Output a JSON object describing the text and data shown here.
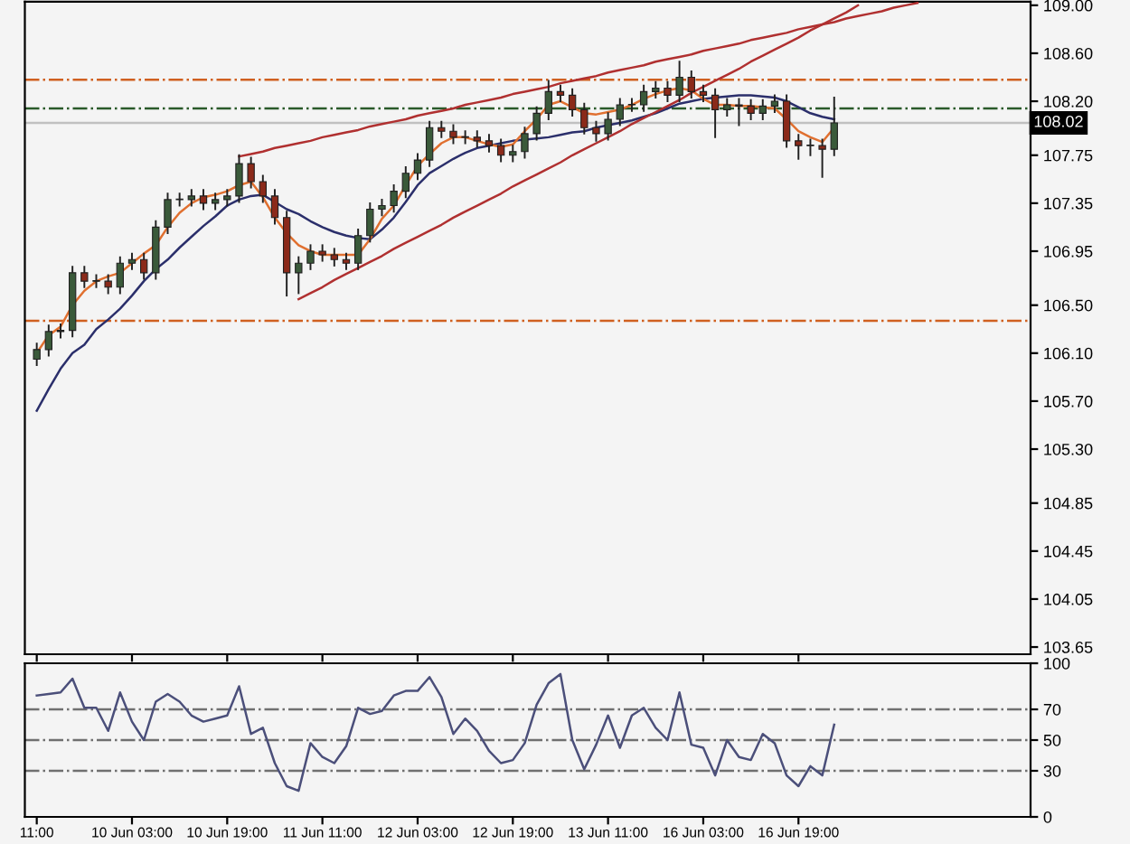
{
  "chart_data": [
    {
      "type": "candlestick",
      "ohlc": [
        [
          106.05,
          106.18,
          106.0,
          106.13
        ],
        [
          106.13,
          106.33,
          106.08,
          106.28
        ],
        [
          106.28,
          106.34,
          106.23,
          106.29
        ],
        [
          106.29,
          106.82,
          106.24,
          106.77
        ],
        [
          106.77,
          106.82,
          106.65,
          106.7
        ],
        [
          106.7,
          106.75,
          106.65,
          106.7
        ],
        [
          106.7,
          106.75,
          106.6,
          106.65
        ],
        [
          106.65,
          106.9,
          106.6,
          106.85
        ],
        [
          106.85,
          106.93,
          106.8,
          106.88
        ],
        [
          106.88,
          106.93,
          106.72,
          106.77
        ],
        [
          106.77,
          107.2,
          106.72,
          107.15
        ],
        [
          107.15,
          107.43,
          107.1,
          107.38
        ],
        [
          107.38,
          107.43,
          107.33,
          107.38
        ],
        [
          107.38,
          107.46,
          107.33,
          107.41
        ],
        [
          107.41,
          107.46,
          107.3,
          107.35
        ],
        [
          107.35,
          107.43,
          107.3,
          107.38
        ],
        [
          107.38,
          107.46,
          107.33,
          107.41
        ],
        [
          107.41,
          107.75,
          107.36,
          107.68
        ],
        [
          107.68,
          107.73,
          107.48,
          107.53
        ],
        [
          107.53,
          107.58,
          107.36,
          107.41
        ],
        [
          107.41,
          107.46,
          107.18,
          107.23
        ],
        [
          107.23,
          107.28,
          106.58,
          106.77
        ],
        [
          106.77,
          106.9,
          106.6,
          106.85
        ],
        [
          106.85,
          107.0,
          106.8,
          106.95
        ],
        [
          106.95,
          107.0,
          106.87,
          106.92
        ],
        [
          106.92,
          106.97,
          106.83,
          106.88
        ],
        [
          106.88,
          106.93,
          106.8,
          106.85
        ],
        [
          106.85,
          107.13,
          106.8,
          107.08
        ],
        [
          107.08,
          107.35,
          107.03,
          107.3
        ],
        [
          107.3,
          107.38,
          107.25,
          107.33
        ],
        [
          107.33,
          107.5,
          107.28,
          107.45
        ],
        [
          107.45,
          107.65,
          107.4,
          107.6
        ],
        [
          107.6,
          107.76,
          107.55,
          107.71
        ],
        [
          107.71,
          108.03,
          107.66,
          107.98
        ],
        [
          107.98,
          108.03,
          107.9,
          107.95
        ],
        [
          107.95,
          108.0,
          107.85,
          107.9
        ],
        [
          107.9,
          107.95,
          107.85,
          107.9
        ],
        [
          107.9,
          107.95,
          107.82,
          107.87
        ],
        [
          107.87,
          107.92,
          107.78,
          107.83
        ],
        [
          107.83,
          107.88,
          107.7,
          107.75
        ],
        [
          107.75,
          107.83,
          107.7,
          107.78
        ],
        [
          107.78,
          107.98,
          107.73,
          107.93
        ],
        [
          107.93,
          108.15,
          107.88,
          108.1
        ],
        [
          108.1,
          108.37,
          108.05,
          108.28
        ],
        [
          108.28,
          108.33,
          108.2,
          108.25
        ],
        [
          108.25,
          108.3,
          108.08,
          108.13
        ],
        [
          108.13,
          108.18,
          107.93,
          107.98
        ],
        [
          107.98,
          108.03,
          107.87,
          107.93
        ],
        [
          107.93,
          108.1,
          107.88,
          108.05
        ],
        [
          108.05,
          108.22,
          108.0,
          108.17
        ],
        [
          108.17,
          108.22,
          108.12,
          108.17
        ],
        [
          108.17,
          108.33,
          108.12,
          108.28
        ],
        [
          108.28,
          108.36,
          108.23,
          108.31
        ],
        [
          108.31,
          108.36,
          108.2,
          108.25
        ],
        [
          108.25,
          108.53,
          108.2,
          108.4
        ],
        [
          108.4,
          108.45,
          108.23,
          108.28
        ],
        [
          108.28,
          108.33,
          108.2,
          108.25
        ],
        [
          108.25,
          108.3,
          107.9,
          108.13
        ],
        [
          108.13,
          108.22,
          108.08,
          108.17
        ],
        [
          108.17,
          108.22,
          108.0,
          108.16
        ],
        [
          108.16,
          108.21,
          108.05,
          108.1
        ],
        [
          108.1,
          108.21,
          108.05,
          108.16
        ],
        [
          108.16,
          108.25,
          108.11,
          108.2
        ],
        [
          108.2,
          108.25,
          107.82,
          107.87
        ],
        [
          107.87,
          107.92,
          107.72,
          107.83
        ],
        [
          107.83,
          107.88,
          107.75,
          107.83
        ],
        [
          107.83,
          107.88,
          107.57,
          107.8
        ],
        [
          107.8,
          108.23,
          107.75,
          108.02
        ],
        null,
        null,
        null,
        null,
        null,
        null,
        null,
        null,
        null,
        null,
        null,
        null,
        null,
        null,
        null,
        null
      ],
      "colors": [
        "#3a5a3a",
        "#3a5a3a",
        "#3a5a3a",
        "#3a5a3a",
        "#8b2a1a",
        "#3a5a3a",
        "#8b2a1a",
        "#3a5a3a",
        "#3a5a3a",
        "#8b2a1a",
        "#3a5a3a",
        "#3a5a3a",
        "#3a5a3a",
        "#3a5a3a",
        "#8b2a1a",
        "#3a5a3a",
        "#3a5a3a",
        "#3a5a3a",
        "#8b2a1a",
        "#8b2a1a",
        "#8b2a1a",
        "#8b2a1a",
        "#3a5a3a",
        "#3a5a3a",
        "#8b2a1a",
        "#8b2a1a",
        "#8b2a1a",
        "#3a5a3a",
        "#3a5a3a",
        "#3a5a3a",
        "#3a5a3a",
        "#3a5a3a",
        "#3a5a3a",
        "#3a5a3a",
        "#8b2a1a",
        "#8b2a1a",
        "#3a5a3a",
        "#8b2a1a",
        "#8b2a1a",
        "#8b2a1a",
        "#3a5a3a",
        "#3a5a3a",
        "#3a5a3a",
        "#3a5a3a",
        "#8b2a1a",
        "#8b2a1a",
        "#8b2a1a",
        "#8b2a1a",
        "#3a5a3a",
        "#3a5a3a",
        "#3a5a3a",
        "#3a5a3a",
        "#3a5a3a",
        "#8b2a1a",
        "#3a5a3a",
        "#8b2a1a",
        "#8b2a1a",
        "#8b2a1a",
        "#3a5a3a",
        "#8b2a1a",
        "#8b2a1a",
        "#3a5a3a",
        "#3a5a3a",
        "#8b2a1a",
        "#8b2a1a",
        "#3a5a3a",
        "#8b2a1a",
        "#3a5a3a",
        null,
        null,
        null,
        null,
        null,
        null,
        null,
        null,
        null,
        null,
        null,
        null,
        null,
        null,
        null,
        null
      ],
      "series": [
        {
          "type": "line",
          "color": "#2b2f6b",
          "values": [
            105.62,
            105.8,
            105.97,
            106.1,
            106.17,
            106.3,
            106.38,
            106.47,
            106.58,
            106.7,
            106.8,
            106.88,
            106.98,
            107.07,
            107.16,
            107.24,
            107.33,
            107.38,
            107.41,
            107.42,
            107.36,
            107.3,
            107.26,
            107.2,
            107.15,
            107.11,
            107.08,
            107.06,
            107.05,
            107.13,
            107.23,
            107.36,
            107.5,
            107.6,
            107.66,
            107.72,
            107.77,
            107.81,
            107.83,
            107.85,
            107.87,
            107.88,
            107.89,
            107.9,
            107.92,
            107.94,
            107.95,
            107.98,
            108.0,
            108.02,
            108.04,
            108.07,
            108.1,
            108.14,
            108.18,
            108.2,
            108.22,
            108.23,
            108.24,
            108.25,
            108.25,
            108.24,
            108.23,
            108.2,
            108.15,
            108.1,
            108.07,
            108.05,
            null,
            null,
            null,
            null,
            null,
            null,
            null,
            null,
            null,
            null,
            null,
            null,
            null,
            null,
            null,
            null
          ]
        },
        {
          "type": "line",
          "color": "#e07030",
          "values": [
            106.1,
            106.25,
            106.32,
            106.5,
            106.62,
            106.7,
            106.74,
            106.77,
            106.85,
            106.93,
            107.0,
            107.15,
            107.27,
            107.35,
            107.4,
            107.42,
            107.45,
            107.5,
            107.53,
            107.4,
            107.23,
            107.1,
            107.0,
            106.95,
            106.92,
            106.92,
            106.92,
            106.92,
            107.05,
            107.22,
            107.33,
            107.5,
            107.66,
            107.76,
            107.85,
            107.9,
            107.9,
            107.87,
            107.84,
            107.82,
            107.84,
            107.95,
            108.05,
            108.17,
            108.2,
            108.15,
            108.1,
            108.09,
            108.11,
            108.13,
            108.17,
            108.22,
            108.26,
            108.29,
            108.31,
            108.29,
            108.22,
            108.17,
            108.17,
            108.16,
            108.16,
            108.15,
            108.14,
            108.05,
            107.95,
            107.9,
            107.86,
            107.98,
            null,
            null,
            null,
            null,
            null,
            null,
            null,
            null,
            null,
            null,
            null,
            null,
            null,
            null,
            null,
            null
          ]
        },
        {
          "type": "line",
          "color": "#b03030",
          "values": [
            null,
            null,
            null,
            null,
            null,
            null,
            null,
            null,
            null,
            null,
            null,
            null,
            null,
            null,
            null,
            null,
            null,
            107.74,
            107.76,
            107.78,
            107.81,
            107.83,
            107.85,
            107.87,
            107.9,
            107.92,
            107.94,
            107.96,
            107.99,
            108.01,
            108.03,
            108.05,
            108.08,
            108.1,
            108.12,
            108.14,
            108.17,
            108.19,
            108.21,
            108.23,
            108.26,
            108.28,
            108.3,
            108.32,
            108.35,
            108.37,
            108.39,
            108.41,
            108.44,
            108.46,
            108.48,
            108.5,
            108.53,
            108.55,
            108.57,
            108.59,
            108.62,
            108.64,
            108.66,
            108.68,
            108.71,
            108.73,
            108.75,
            108.77,
            108.8,
            108.82,
            108.84,
            108.86,
            108.89,
            108.91,
            108.93,
            108.95,
            108.98,
            109.0,
            109.02,
            null,
            null,
            null,
            null,
            null,
            null,
            null,
            null,
            null
          ]
        },
        {
          "type": "line",
          "color": "#b03030",
          "values": [
            null,
            null,
            null,
            null,
            null,
            null,
            null,
            null,
            null,
            null,
            null,
            null,
            null,
            null,
            null,
            null,
            null,
            null,
            null,
            null,
            null,
            null,
            106.55,
            106.6,
            106.65,
            106.71,
            106.76,
            106.81,
            106.86,
            106.91,
            106.97,
            107.02,
            107.07,
            107.12,
            107.17,
            107.23,
            107.28,
            107.33,
            107.38,
            107.43,
            107.49,
            107.54,
            107.59,
            107.64,
            107.69,
            107.75,
            107.8,
            107.85,
            107.9,
            107.95,
            108.01,
            108.06,
            108.11,
            108.16,
            108.21,
            108.27,
            108.32,
            108.37,
            108.42,
            108.47,
            108.53,
            108.58,
            108.63,
            108.68,
            108.73,
            108.79,
            108.84,
            108.89,
            108.94,
            109.0,
            null,
            null,
            null,
            null,
            null,
            null,
            null,
            null,
            null,
            null,
            null,
            null,
            null,
            null
          ]
        }
      ],
      "ref_lines": [
        {
          "axis": "y",
          "value": 108.38,
          "color": "#d06020",
          "line_style": "dashdot"
        },
        {
          "axis": "y",
          "value": 108.14,
          "color": "#2a5a2a",
          "line_style": "dashdot"
        },
        {
          "axis": "y",
          "value": 108.02,
          "label": "108.02",
          "color": "#c0c0c0",
          "line_style": "solid"
        },
        {
          "axis": "y",
          "value": 106.37,
          "color": "#d06020",
          "line_style": "dashdot"
        }
      ],
      "ylim": [
        103.59,
        109.03
      ],
      "yticks": [
        {
          "value": 109.0,
          "label": "109.00"
        },
        {
          "value": 108.6,
          "label": "108.60"
        },
        {
          "value": 108.2,
          "label": "108.20"
        },
        {
          "value": 107.75,
          "label": "107.75"
        },
        {
          "value": 107.35,
          "label": "107.35"
        },
        {
          "value": 106.95,
          "label": "106.95"
        },
        {
          "value": 106.5,
          "label": "106.50"
        },
        {
          "value": 106.1,
          "label": "106.10"
        },
        {
          "value": 105.7,
          "label": "105.70"
        },
        {
          "value": 105.3,
          "label": "105.30"
        },
        {
          "value": 104.85,
          "label": "104.85"
        },
        {
          "value": 104.45,
          "label": "104.45"
        },
        {
          "value": 104.05,
          "label": "104.05"
        },
        {
          "value": 103.65,
          "label": "103.65"
        }
      ],
      "tick_labels": "y"
    },
    {
      "type": "line",
      "categories": [
        "11:00",
        null,
        null,
        null,
        null,
        null,
        null,
        null,
        "10 Jun 03:00",
        null,
        null,
        null,
        null,
        null,
        null,
        null,
        "10 Jun 19:00",
        null,
        null,
        null,
        null,
        null,
        null,
        null,
        "11 Jun 11:00",
        null,
        null,
        null,
        null,
        null,
        null,
        null,
        "12 Jun 03:00",
        null,
        null,
        null,
        null,
        null,
        null,
        null,
        "12 Jun 19:00",
        null,
        null,
        null,
        null,
        null,
        null,
        null,
        "13 Jun 11:00",
        null,
        null,
        null,
        null,
        null,
        null,
        null,
        "16 Jun 03:00",
        null,
        null,
        null,
        null,
        null,
        null,
        null,
        "16 Jun 19:00",
        null,
        null,
        null,
        null,
        null,
        null,
        null,
        null,
        null,
        null,
        null,
        null,
        null,
        null,
        null,
        null,
        null,
        null,
        null
      ],
      "series": [
        {
          "color": "#4b4f7a",
          "values": [
            79,
            80,
            81,
            90,
            71,
            71,
            56,
            81,
            62,
            50,
            75,
            80,
            75,
            66,
            62,
            64,
            66,
            85,
            54,
            58,
            35,
            20,
            17,
            48,
            39,
            35,
            46,
            71,
            67,
            69,
            79,
            82,
            82,
            91,
            78,
            54,
            64,
            56,
            43,
            35,
            37,
            48,
            73,
            87,
            93,
            50,
            31,
            47,
            66,
            45,
            66,
            71,
            58,
            50,
            81,
            47,
            45,
            27,
            50,
            39,
            37,
            54,
            48,
            27,
            20,
            33,
            27,
            60,
            null,
            null,
            null,
            null,
            null,
            null,
            null,
            null,
            null,
            null,
            null,
            null,
            null,
            null,
            null,
            null
          ]
        }
      ],
      "ref_lines": [
        {
          "axis": "y",
          "value": 70,
          "color": "#707070",
          "line_style": "dashdot"
        },
        {
          "axis": "y",
          "value": 50,
          "color": "#707070",
          "line_style": "dashdot"
        },
        {
          "axis": "y",
          "value": 30,
          "color": "#707070",
          "line_style": "dashdot"
        }
      ],
      "ylim": [
        0,
        100
      ],
      "yticks": [
        0,
        30,
        50,
        70,
        100
      ]
    }
  ]
}
